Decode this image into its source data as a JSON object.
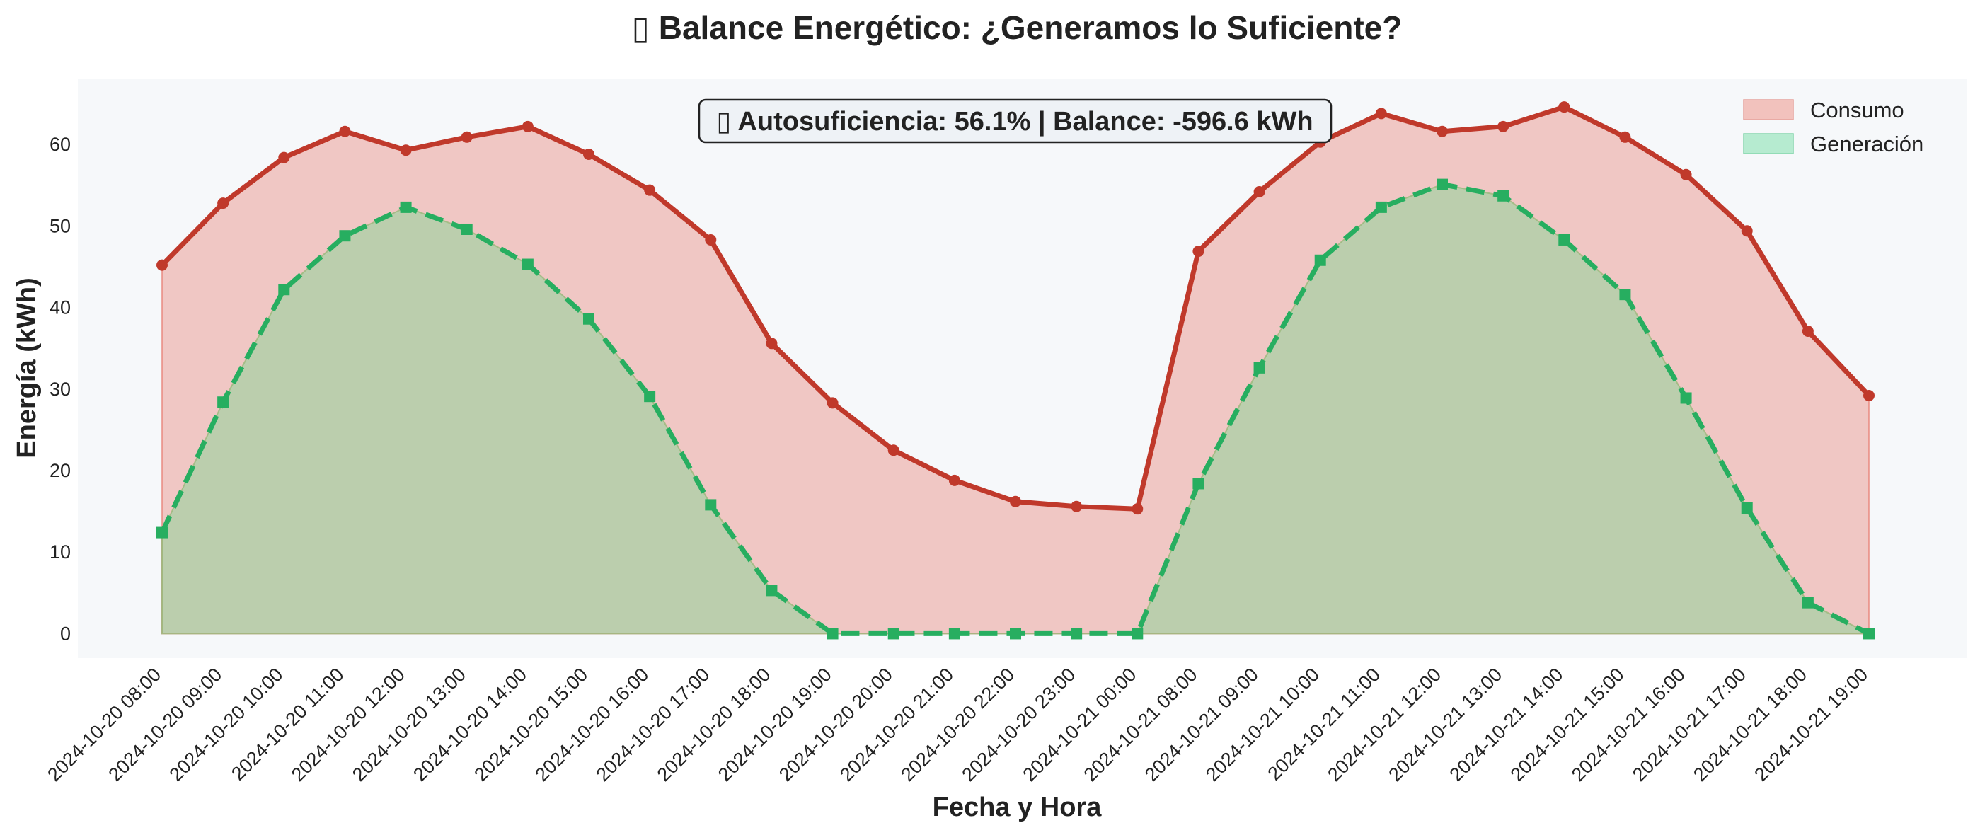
{
  "chart_data": {
    "type": "area",
    "title": "▯ Balance Energético: ¿Generamos lo Suficiente?",
    "xlabel": "Fecha y Hora",
    "ylabel": "Energía (kWh)",
    "ylim": [
      -3,
      68
    ],
    "yticks": [
      0,
      10,
      20,
      30,
      40,
      50,
      60
    ],
    "grid": false,
    "legend_position": "top-right",
    "categories": [
      "2024-10-20 08:00",
      "2024-10-20 09:00",
      "2024-10-20 10:00",
      "2024-10-20 11:00",
      "2024-10-20 12:00",
      "2024-10-20 13:00",
      "2024-10-20 14:00",
      "2024-10-20 15:00",
      "2024-10-20 16:00",
      "2024-10-20 17:00",
      "2024-10-20 18:00",
      "2024-10-20 19:00",
      "2024-10-20 20:00",
      "2024-10-20 21:00",
      "2024-10-20 22:00",
      "2024-10-20 23:00",
      "2024-10-21 00:00",
      "2024-10-21 08:00",
      "2024-10-21 09:00",
      "2024-10-21 10:00",
      "2024-10-21 11:00",
      "2024-10-21 12:00",
      "2024-10-21 13:00",
      "2024-10-21 14:00",
      "2024-10-21 15:00",
      "2024-10-21 16:00",
      "2024-10-21 17:00",
      "2024-10-21 18:00",
      "2024-10-21 19:00"
    ],
    "series": [
      {
        "name": "Consumo",
        "color": "#c0392b",
        "fill": "#f2c2bd",
        "marker": "circle",
        "line_style": "solid",
        "values": [
          45.2,
          52.8,
          58.4,
          61.6,
          59.3,
          60.9,
          62.2,
          58.8,
          54.4,
          48.3,
          35.6,
          28.3,
          22.5,
          18.8,
          16.2,
          15.6,
          15.3,
          46.9,
          54.2,
          60.3,
          63.8,
          61.6,
          62.2,
          64.6,
          60.9,
          56.3,
          49.4,
          37.1,
          29.2
        ]
      },
      {
        "name": "Generación",
        "color": "#27ae60",
        "fill": "#b6c7a7",
        "marker": "square",
        "line_style": "dashed",
        "values": [
          12.4,
          28.4,
          42.2,
          48.8,
          52.3,
          49.6,
          45.3,
          38.6,
          29.1,
          15.8,
          5.3,
          0,
          0,
          0,
          0,
          0,
          0,
          18.4,
          32.6,
          45.8,
          52.3,
          55.1,
          53.7,
          48.3,
          41.6,
          28.9,
          15.4,
          3.8,
          0
        ]
      }
    ],
    "annotation": "▯ Autosuficiencia: 56.1% | Balance: -596.6 kWh",
    "colors": {
      "plot_background": "#f6f8fa",
      "legend_consumo_patch": "#f2c2bd",
      "legend_generacion_patch": "#b6ebd0"
    }
  }
}
